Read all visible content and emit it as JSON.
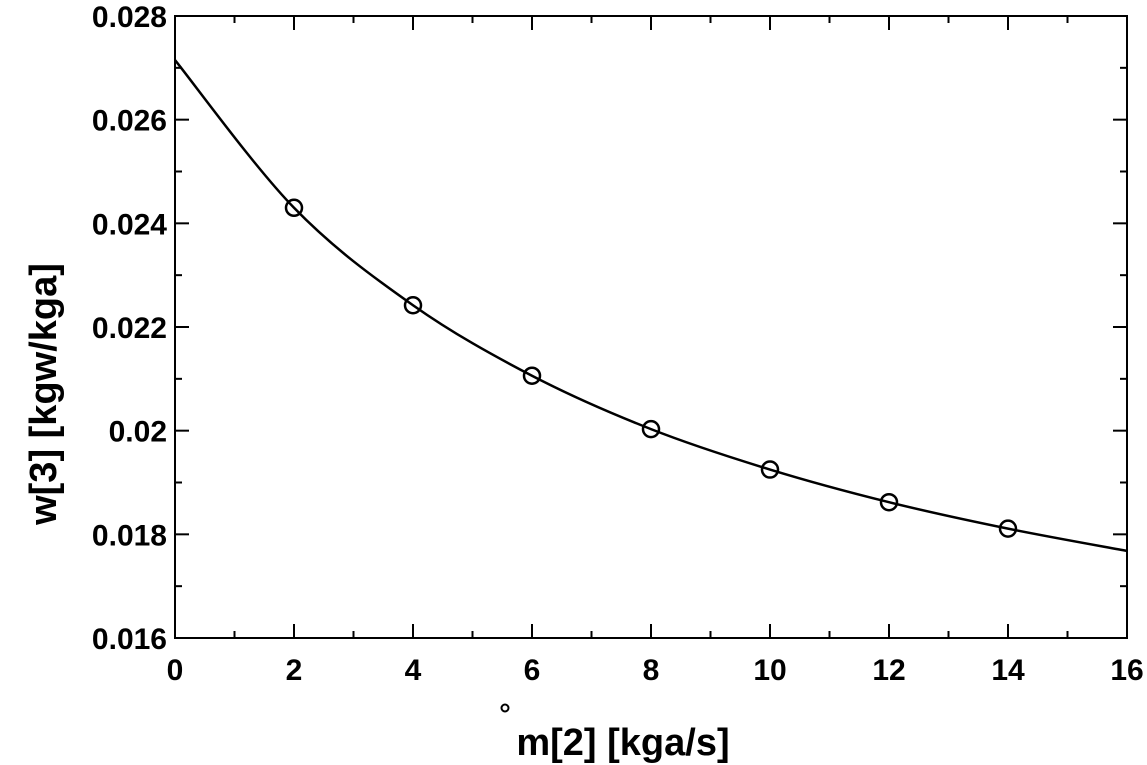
{
  "chart_data": {
    "type": "line",
    "title": "",
    "xlabel": "m[2]  [kga/s]",
    "ylabel": "w[3]  [kgw/kga]",
    "xlim": [
      0,
      16
    ],
    "ylim": [
      0.016,
      0.028
    ],
    "x_ticks": [
      0,
      2,
      4,
      6,
      8,
      10,
      12,
      14,
      16
    ],
    "x_tick_labels": [
      "0",
      "2",
      "4",
      "6",
      "8",
      "10",
      "12",
      "14",
      "16"
    ],
    "y_ticks": [
      0.016,
      0.018,
      0.02,
      0.022,
      0.024,
      0.026,
      0.028
    ],
    "y_tick_labels": [
      "0.016",
      "0.018",
      "0.02",
      "0.022",
      "0.024",
      "0.026",
      "0.028"
    ],
    "grid": false,
    "legend": "none",
    "series": [
      {
        "style": "line",
        "color": "#000000",
        "x": [
          0,
          2,
          4,
          6,
          8,
          10,
          12,
          14,
          16
        ],
        "y": [
          0.02715,
          0.0243,
          0.02242,
          0.02106,
          0.02003,
          0.01925,
          0.01862,
          0.01811,
          0.01768
        ]
      },
      {
        "style": "markers",
        "marker": "open-circle",
        "color": "#000000",
        "x": [
          2,
          4,
          6,
          8,
          10,
          12,
          14
        ],
        "y": [
          0.0243,
          0.02242,
          0.02106,
          0.02003,
          0.01925,
          0.01862,
          0.01811
        ]
      }
    ]
  }
}
